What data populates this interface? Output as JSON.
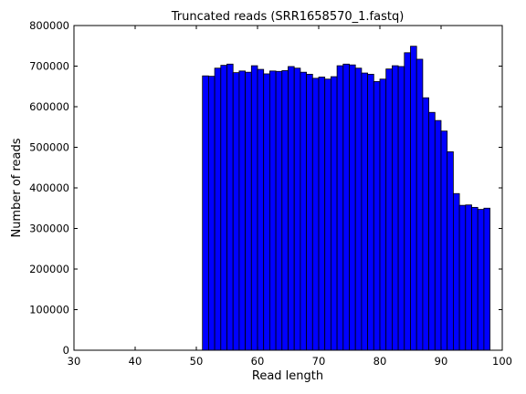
{
  "chart_data": {
    "type": "bar",
    "title": "Truncated reads (SRR1658570_1.fastq)",
    "xlabel": "Read length",
    "ylabel": "Number of reads",
    "xlim": [
      30,
      100
    ],
    "ylim": [
      0,
      800000
    ],
    "xticks": [
      "30",
      "40",
      "50",
      "60",
      "70",
      "80",
      "90",
      "100"
    ],
    "yticks": [
      "0",
      "100000",
      "200000",
      "300000",
      "400000",
      "500000",
      "600000",
      "700000",
      "800000"
    ],
    "bin_width": 1,
    "x": [
      51,
      52,
      53,
      54,
      55,
      56,
      57,
      58,
      59,
      60,
      61,
      62,
      63,
      64,
      65,
      66,
      67,
      68,
      69,
      70,
      71,
      72,
      73,
      74,
      75,
      76,
      77,
      78,
      79,
      80,
      81,
      82,
      83,
      84,
      85,
      86,
      87,
      88,
      89,
      90,
      91,
      92,
      93,
      94,
      95,
      96,
      97
    ],
    "values": [
      676000,
      675000,
      695000,
      702000,
      705000,
      684000,
      688000,
      685000,
      701000,
      692000,
      681000,
      688000,
      687000,
      689000,
      699000,
      695000,
      685000,
      680000,
      670000,
      673000,
      668000,
      674000,
      701000,
      705000,
      703000,
      695000,
      683000,
      680000,
      662000,
      668000,
      693000,
      701000,
      699000,
      733000,
      749000,
      717000,
      622000,
      586000,
      566000,
      540000,
      489000,
      386000,
      357000,
      358000,
      352000,
      347000,
      350000
    ],
    "bar_color": "#0000ff",
    "edge_color": "#000000",
    "grid": false,
    "legend": "none"
  }
}
